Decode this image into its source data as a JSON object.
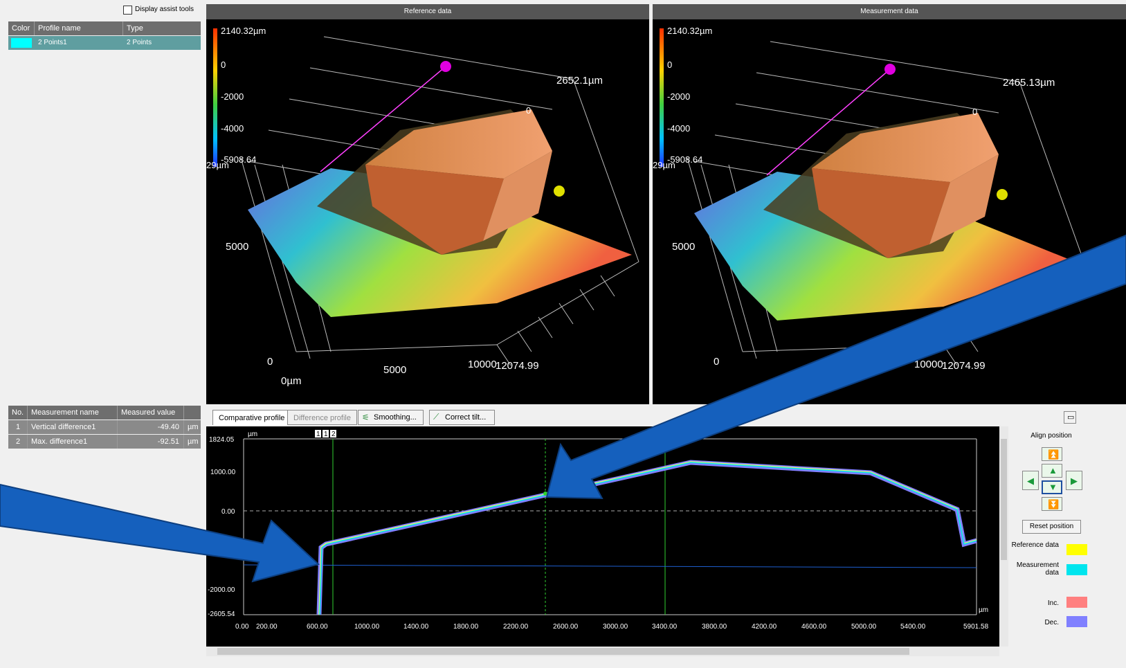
{
  "left_panel": {
    "assist_tools_label": "Display assist tools",
    "profile_table": {
      "headers": [
        "Color",
        "Profile name",
        "Type"
      ],
      "rows": [
        {
          "color": "#00ffff",
          "name": "2 Points1",
          "type": "2 Points"
        }
      ]
    },
    "measurement_table": {
      "headers": [
        "No.",
        "Measurement name",
        "Measured value"
      ],
      "rows": [
        {
          "no": "1",
          "name": "Vertical difference1",
          "value": "-49.40",
          "unit": "µm"
        },
        {
          "no": "2",
          "name": "Max. difference1",
          "value": "-92.51",
          "unit": "µm"
        }
      ]
    }
  },
  "reference_view": {
    "title": "Reference data",
    "scale_max": "2140.32µm",
    "scale_ticks": [
      "0",
      "-2000",
      "-4000"
    ],
    "scale_min": "-5908.64",
    "scale_unit_fragment": "29µm",
    "axis_corner": "2652.1µm",
    "axis_5000_left": "5000",
    "axis_0": "0",
    "axis_5000_bottom": "5000",
    "axis_10000": "10000",
    "axis_end": "12074.99",
    "axis_origin": "0µm",
    "axis_small_zero": "0"
  },
  "measurement_view": {
    "title": "Measurement data",
    "scale_max": "2140.32µm",
    "scale_ticks": [
      "0",
      "-2000",
      "-4000"
    ],
    "scale_min": "-5908.64",
    "scale_unit_fragment": "29µm",
    "axis_corner": "2465.13µm",
    "axis_5000_left": "5000",
    "axis_0": "0",
    "axis_5000_bottom": "5000",
    "axis_10000": "10000",
    "axis_end": "12074.99",
    "axis_small_zero": "0"
  },
  "profile_panel": {
    "tabs": [
      "Comparative profile",
      "Difference profile"
    ],
    "smoothing_label": "Smoothing...",
    "correct_tilt_label": "Correct tilt...",
    "markers": [
      "1",
      "1",
      "2"
    ],
    "y_unit": "µm",
    "x_unit": "µm",
    "y_ticks": [
      "1824.05",
      "1000.00",
      "0.00",
      "-2000.00",
      "-2605.54"
    ],
    "x_ticks": [
      "0.00",
      "200.00",
      "600.00",
      "1000.00",
      "1400.00",
      "1800.00",
      "2200.00",
      "2600.00",
      "3000.00",
      "3400.00",
      "3800.00",
      "4200.00",
      "4600.00",
      "5000.00",
      "5400.00",
      "5901.58"
    ]
  },
  "side_controls": {
    "align_label": "Align position",
    "reset_label": "Reset position",
    "legend": [
      {
        "label": "Reference data",
        "color": "#ffff00"
      },
      {
        "label": "Measurement data",
        "color": "#00e5ee"
      },
      {
        "label": "Inc.",
        "color": "#ff7f7f"
      },
      {
        "label": "Dec.",
        "color": "#8080ff"
      }
    ]
  },
  "colors": {
    "accent_arrow": "#1560bd",
    "header_gray": "#6e6e6e"
  }
}
